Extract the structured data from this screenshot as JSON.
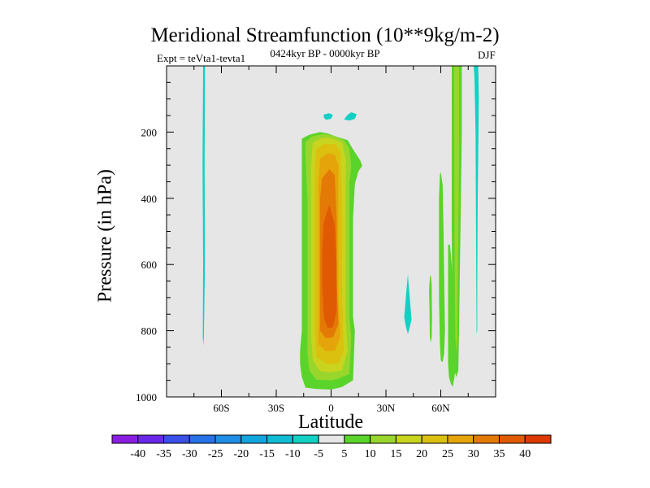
{
  "chart_data": {
    "type": "filled-contour",
    "title": "Meridional Streamfunction (10**9kg/m-2)",
    "left_annotation": "Expt = teVta1-tevta1",
    "center_annotation": "0424kyr BP - 0000kyr BP",
    "right_annotation": "DJF",
    "xlabel": "Latitude",
    "ylabel": "Pressure (in hPa)",
    "xlim": [
      -90,
      90
    ],
    "ylim": [
      1000,
      0
    ],
    "x_ticks": [
      {
        "value": -60,
        "label": "60S"
      },
      {
        "value": -30,
        "label": "30S"
      },
      {
        "value": 0,
        "label": "0"
      },
      {
        "value": 30,
        "label": "30N"
      },
      {
        "value": 60,
        "label": "60N"
      }
    ],
    "y_ticks": [
      {
        "value": 200,
        "label": "200"
      },
      {
        "value": 400,
        "label": "400"
      },
      {
        "value": 600,
        "label": "600"
      },
      {
        "value": 800,
        "label": "800"
      },
      {
        "value": 1000,
        "label": "1000"
      }
    ],
    "colorbar": {
      "labels": [
        "-40",
        "-35",
        "-30",
        "-25",
        "-20",
        "-15",
        "-10",
        "-5",
        "5",
        "10",
        "15",
        "20",
        "25",
        "30",
        "35",
        "40"
      ],
      "colors": [
        "#8a1ee0",
        "#6a28e8",
        "#3a50e8",
        "#2672e6",
        "#1e8ee6",
        "#12a6de",
        "#10bcd4",
        "#12d0c4",
        "#e6e6e6",
        "#5ad42a",
        "#98d62c",
        "#c8d41e",
        "#dcc010",
        "#e4a40a",
        "#e47a06",
        "#e05a04",
        "#dc3a02"
      ]
    },
    "regions": [
      {
        "name": "Main cell 5-10",
        "color_index": 9,
        "points": [
          [
            -16,
            220
          ],
          [
            -12,
            208
          ],
          [
            -6,
            200
          ],
          [
            -2,
            204
          ],
          [
            3,
            214
          ],
          [
            9,
            224
          ],
          [
            12,
            252
          ],
          [
            16,
            286
          ],
          [
            17,
            302
          ],
          [
            15,
            318
          ],
          [
            13,
            356
          ],
          [
            12,
            460
          ],
          [
            12,
            760
          ],
          [
            13,
            800
          ],
          [
            12,
            950
          ],
          [
            6,
            970
          ],
          [
            0,
            978
          ],
          [
            -8,
            976
          ],
          [
            -14,
            972
          ],
          [
            -16,
            940
          ],
          [
            -17,
            900
          ],
          [
            -17,
            860
          ],
          [
            -16,
            800
          ],
          [
            -16,
            700
          ],
          [
            -16,
            500
          ],
          [
            -16,
            300
          ]
        ]
      },
      {
        "name": "Main cell 10-15",
        "color_index": 10,
        "points": [
          [
            -14,
            230
          ],
          [
            -10,
            212
          ],
          [
            -4,
            206
          ],
          [
            2,
            212
          ],
          [
            7,
            224
          ],
          [
            10,
            250
          ],
          [
            11,
            300
          ],
          [
            10,
            360
          ],
          [
            10,
            500
          ],
          [
            10,
            760
          ],
          [
            11,
            820
          ],
          [
            10,
            930
          ],
          [
            4,
            945
          ],
          [
            0,
            950
          ],
          [
            -8,
            948
          ],
          [
            -12,
            920
          ],
          [
            -13,
            860
          ],
          [
            -13,
            700
          ],
          [
            -13,
            400
          ],
          [
            -14,
            280
          ]
        ]
      },
      {
        "name": "Main cell 15-20",
        "color_index": 11,
        "points": [
          [
            -10,
            232
          ],
          [
            -6,
            220
          ],
          [
            -2,
            216
          ],
          [
            2,
            222
          ],
          [
            6,
            232
          ],
          [
            8,
            280
          ],
          [
            8,
            500
          ],
          [
            8,
            760
          ],
          [
            9,
            860
          ],
          [
            6,
            920
          ],
          [
            0,
            926
          ],
          [
            -6,
            922
          ],
          [
            -10,
            890
          ],
          [
            -11,
            820
          ],
          [
            -11,
            600
          ],
          [
            -11,
            400
          ],
          [
            -11,
            300
          ]
        ]
      },
      {
        "name": "Main cell 20-25",
        "color_index": 12,
        "points": [
          [
            -8,
            250
          ],
          [
            -4,
            236
          ],
          [
            2,
            236
          ],
          [
            5,
            260
          ],
          [
            6,
            400
          ],
          [
            6,
            700
          ],
          [
            7,
            860
          ],
          [
            4,
            900
          ],
          [
            -2,
            902
          ],
          [
            -8,
            880
          ],
          [
            -9,
            800
          ],
          [
            -9,
            600
          ],
          [
            -9,
            400
          ],
          [
            -9,
            300
          ]
        ]
      },
      {
        "name": "Main cell 25-30",
        "color_index": 13,
        "points": [
          [
            -6,
            280
          ],
          [
            -2,
            264
          ],
          [
            2,
            268
          ],
          [
            4,
            300
          ],
          [
            4,
            500
          ],
          [
            4,
            700
          ],
          [
            5,
            820
          ],
          [
            2,
            860
          ],
          [
            -3,
            862
          ],
          [
            -7,
            840
          ],
          [
            -7,
            700
          ],
          [
            -7,
            500
          ],
          [
            -7,
            360
          ]
        ]
      },
      {
        "name": "Main cell 30-35",
        "color_index": 14,
        "points": [
          [
            -5,
            340
          ],
          [
            -1,
            312
          ],
          [
            2,
            330
          ],
          [
            3,
            460
          ],
          [
            3,
            650
          ],
          [
            4,
            780
          ],
          [
            1,
            820
          ],
          [
            -3,
            822
          ],
          [
            -6,
            800
          ],
          [
            -6,
            650
          ],
          [
            -6,
            500
          ],
          [
            -6,
            400
          ]
        ]
      },
      {
        "name": "Main cell 35-40",
        "color_index": 15,
        "points": [
          [
            -4,
            470
          ],
          [
            -1,
            420
          ],
          [
            2,
            480
          ],
          [
            3,
            600
          ],
          [
            3,
            740
          ],
          [
            1,
            790
          ],
          [
            -2,
            792
          ],
          [
            -4,
            760
          ],
          [
            -5,
            650
          ],
          [
            -5,
            560
          ]
        ]
      },
      {
        "name": "Upper blob left",
        "color_index": 7,
        "points": [
          [
            -4,
            147
          ],
          [
            -1,
            143
          ],
          [
            1,
            148
          ],
          [
            0,
            160
          ],
          [
            -3,
            163
          ],
          [
            -4,
            155
          ]
        ]
      },
      {
        "name": "Upper blob right",
        "color_index": 7,
        "points": [
          [
            7,
            162
          ],
          [
            9,
            148
          ],
          [
            11,
            140
          ],
          [
            14,
            146
          ],
          [
            13,
            160
          ],
          [
            10,
            165
          ]
        ]
      },
      {
        "name": "Left band 65S",
        "color_index": 7,
        "points": [
          [
            -70,
            0
          ],
          [
            -69,
            0
          ],
          [
            -69.2,
            300
          ],
          [
            -69,
            600
          ],
          [
            -69.6,
            820
          ],
          [
            -69.9,
            845
          ],
          [
            -70.2,
            820
          ],
          [
            -70,
            600
          ],
          [
            -70.3,
            300
          ]
        ]
      },
      {
        "name": "Small cell 42N",
        "color_index": 7,
        "points": [
          [
            40,
            760
          ],
          [
            41,
            690
          ],
          [
            42,
            630
          ],
          [
            43,
            700
          ],
          [
            44,
            765
          ],
          [
            43,
            790
          ],
          [
            42,
            810
          ],
          [
            41,
            790
          ]
        ]
      },
      {
        "name": "Cell 54N",
        "color_index": 9,
        "points": [
          [
            54,
            820
          ],
          [
            53.8,
            720
          ],
          [
            53.6,
            680
          ],
          [
            54,
            640
          ],
          [
            54.5,
            630
          ],
          [
            55,
            660
          ],
          [
            55.2,
            760
          ],
          [
            55,
            820
          ],
          [
            54.5,
            835
          ]
        ]
      },
      {
        "name": "Cell 62N left",
        "color_index": 9,
        "points": [
          [
            60,
            890
          ],
          [
            59.5,
            840
          ],
          [
            59,
            700
          ],
          [
            59,
            400
          ],
          [
            59.5,
            330
          ],
          [
            60,
            320
          ],
          [
            61,
            360
          ],
          [
            61.5,
            500
          ],
          [
            62,
            700
          ],
          [
            62.3,
            800
          ],
          [
            61.8,
            870
          ],
          [
            61,
            895
          ]
        ]
      },
      {
        "name": "Cell 62N right",
        "color_index": 9,
        "points": [
          [
            64,
            540
          ],
          [
            65,
            540
          ],
          [
            66,
            600
          ],
          [
            67,
            700
          ],
          [
            68,
            820
          ],
          [
            68.5,
            880
          ],
          [
            67.5,
            940
          ],
          [
            66.5,
            970
          ],
          [
            65.5,
            960
          ],
          [
            64.5,
            940
          ],
          [
            64,
            900
          ]
        ]
      },
      {
        "name": "Northern column",
        "color_index": 9,
        "points": [
          [
            66,
            0
          ],
          [
            71.5,
            0
          ],
          [
            71.5,
            200
          ],
          [
            71,
            400
          ],
          [
            70.5,
            600
          ],
          [
            70,
            800
          ],
          [
            69.6,
            920
          ],
          [
            68.5,
            940
          ],
          [
            67.4,
            920
          ],
          [
            66.8,
            800
          ],
          [
            66.3,
            700
          ],
          [
            66,
            500
          ]
        ]
      },
      {
        "name": "Northern column 10-15",
        "color_index": 10,
        "points": [
          [
            67.3,
            0
          ],
          [
            70,
            0
          ],
          [
            70,
            300
          ],
          [
            69.6,
            500
          ],
          [
            69.2,
            700
          ],
          [
            69,
            820
          ],
          [
            68.5,
            870
          ],
          [
            68,
            820
          ],
          [
            67.7,
            700
          ],
          [
            67.5,
            500
          ]
        ]
      },
      {
        "name": "Right band 79N",
        "color_index": 7,
        "points": [
          [
            78,
            0
          ],
          [
            80.5,
            0
          ],
          [
            80.8,
            100
          ],
          [
            80.2,
            400
          ],
          [
            80,
            600
          ],
          [
            79.9,
            800
          ],
          [
            79.6,
            810
          ],
          [
            79.4,
            600
          ],
          [
            79.2,
            400
          ],
          [
            79,
            200
          ],
          [
            78.4,
            30
          ]
        ]
      }
    ]
  }
}
